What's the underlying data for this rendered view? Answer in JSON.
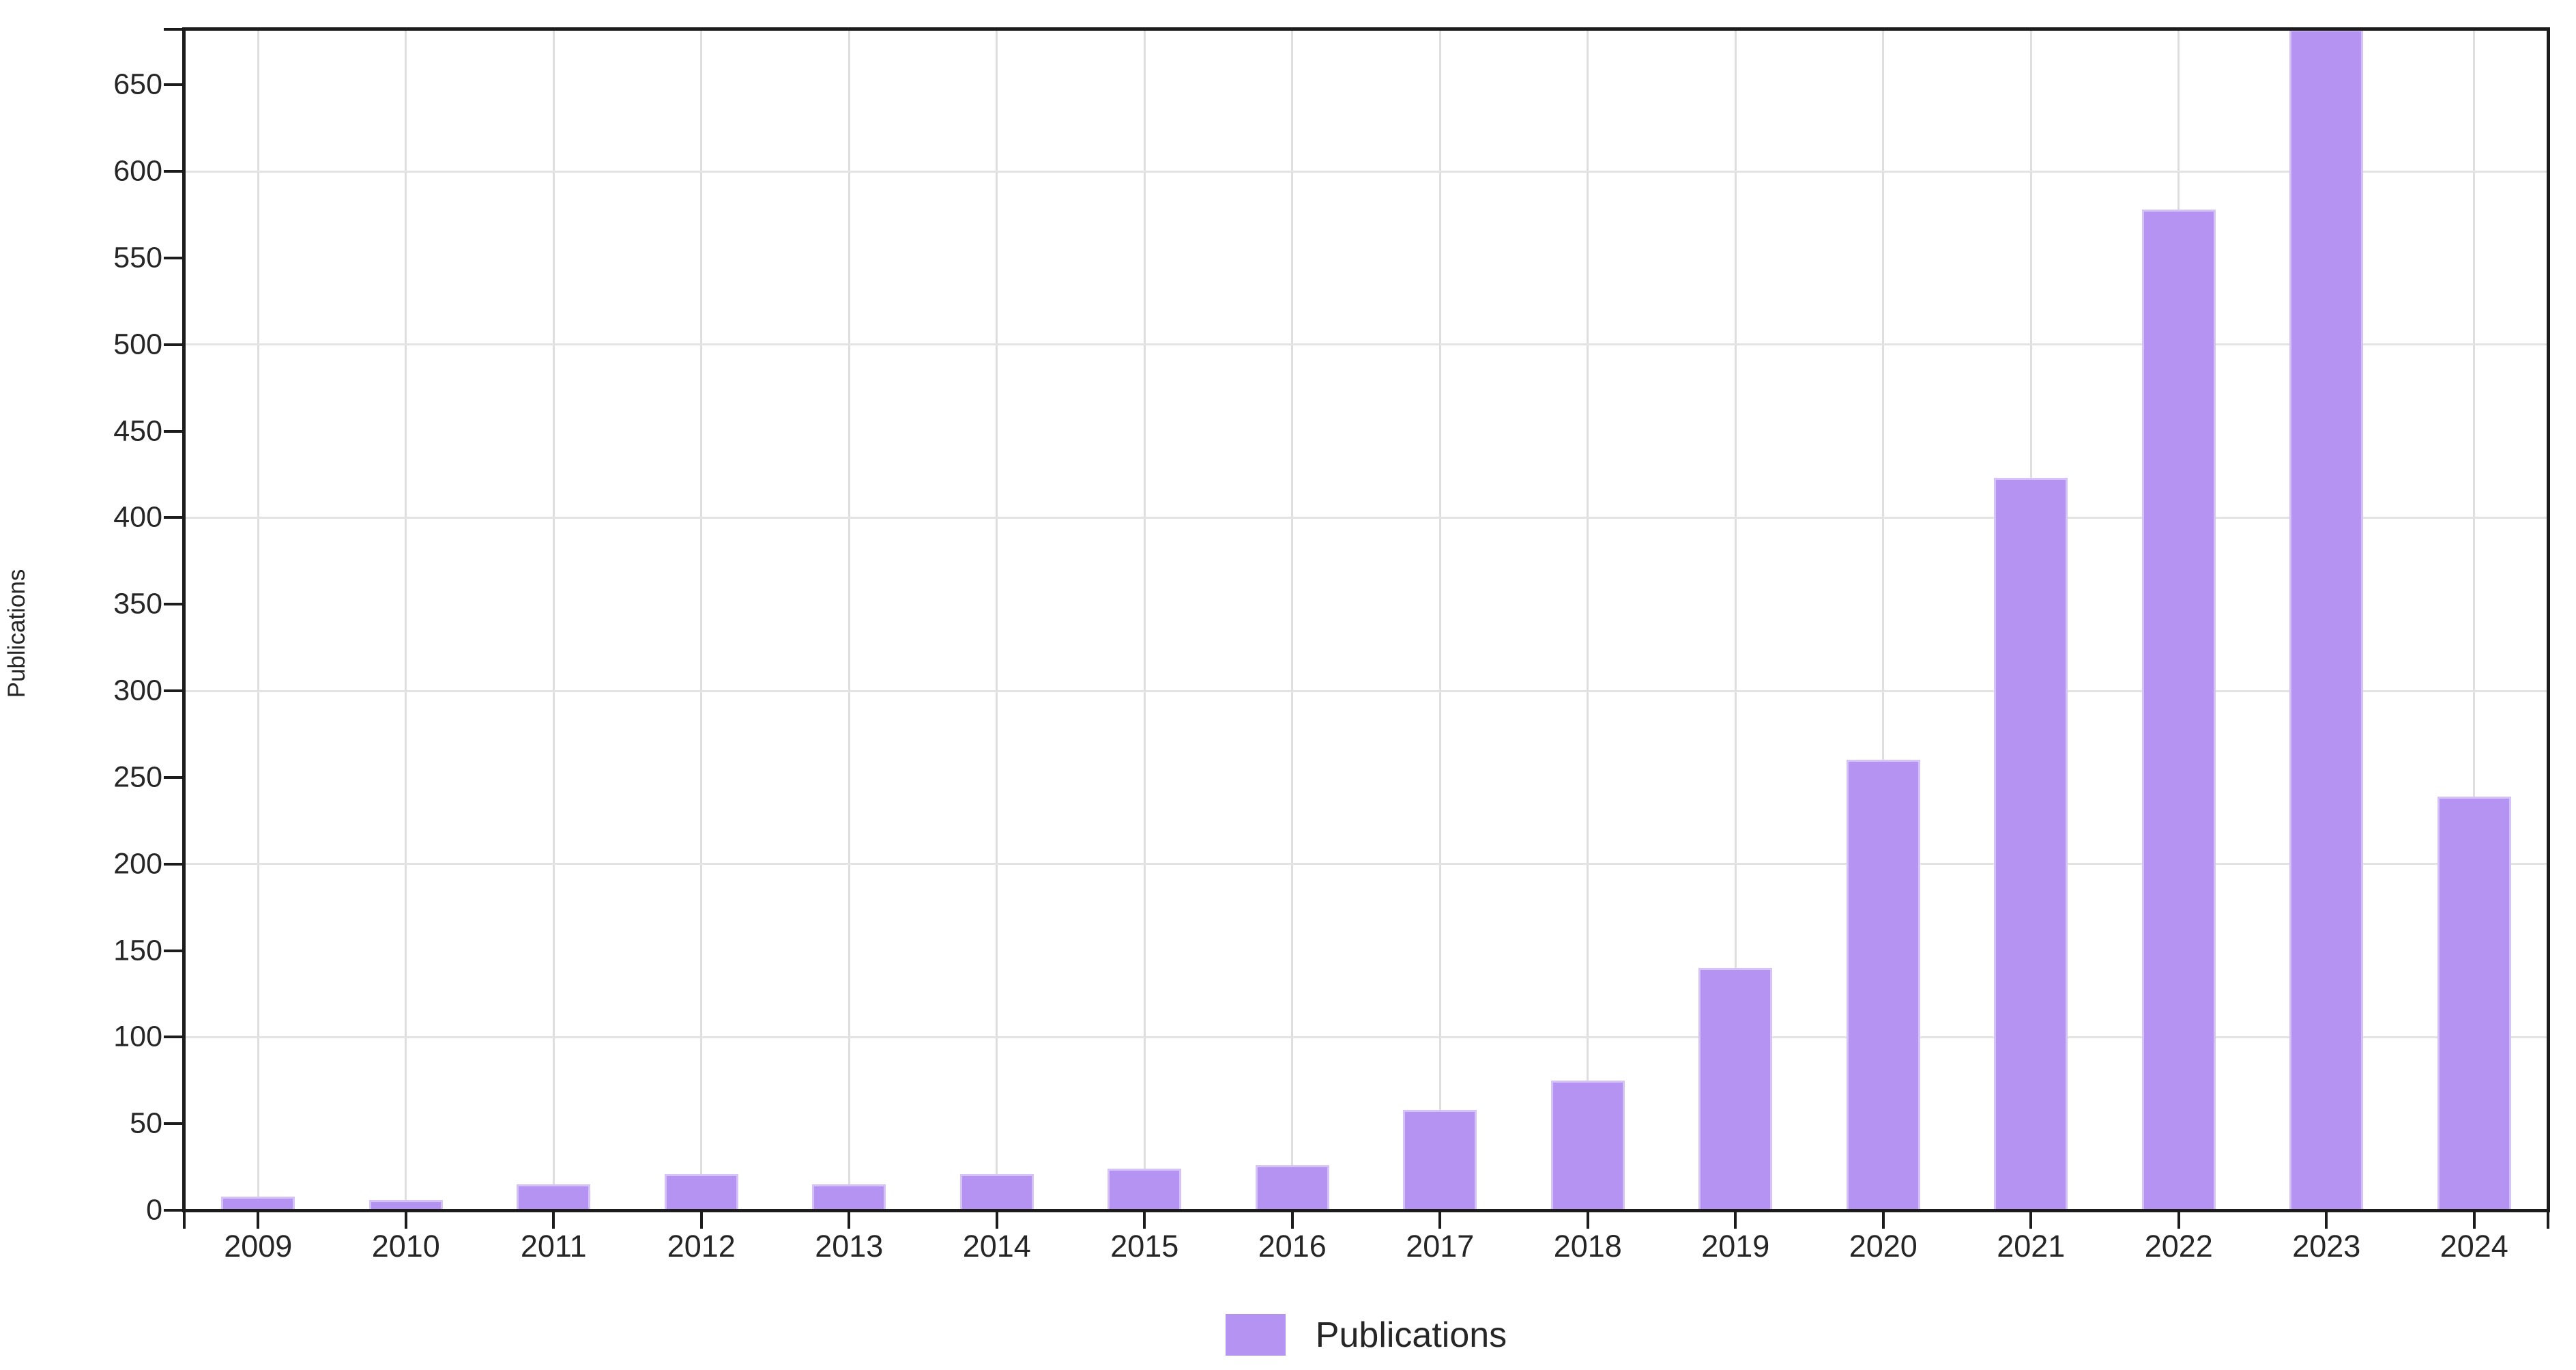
{
  "chart_data": {
    "type": "bar",
    "title": "",
    "xlabel": "",
    "ylabel": "Publications",
    "categories": [
      "2009",
      "2010",
      "2011",
      "2012",
      "2013",
      "2014",
      "2015",
      "2016",
      "2017",
      "2018",
      "2019",
      "2020",
      "2021",
      "2022",
      "2023",
      "2024"
    ],
    "series": [
      {
        "name": "Publications",
        "values": [
          8,
          6,
          15,
          21,
          15,
          21,
          24,
          26,
          58,
          75,
          140,
          260,
          423,
          578,
          682,
          239
        ]
      }
    ],
    "ylim": [
      0,
      682
    ],
    "yticks": [
      0,
      50,
      100,
      150,
      200,
      250,
      300,
      350,
      400,
      450,
      500,
      550,
      600,
      650
    ],
    "ygridlines": [
      100,
      200,
      300,
      400,
      500,
      600
    ],
    "grid": "horizontal gridlines every 100; vertical gridline at each category center",
    "legend_position": "bottom-center",
    "note": "2023 bar reaches the top plot border (clipped at axis maximum)"
  },
  "legend": {
    "label": "Publications"
  },
  "colors": {
    "bar_fill": "#b593f3",
    "bar_edge": "#d4c2f9",
    "grid_vertical": "#dedede",
    "grid_horizontal": "#e3e3e3",
    "axis": "#1c1c1c",
    "text": "#262626",
    "background": "#ffffff"
  }
}
